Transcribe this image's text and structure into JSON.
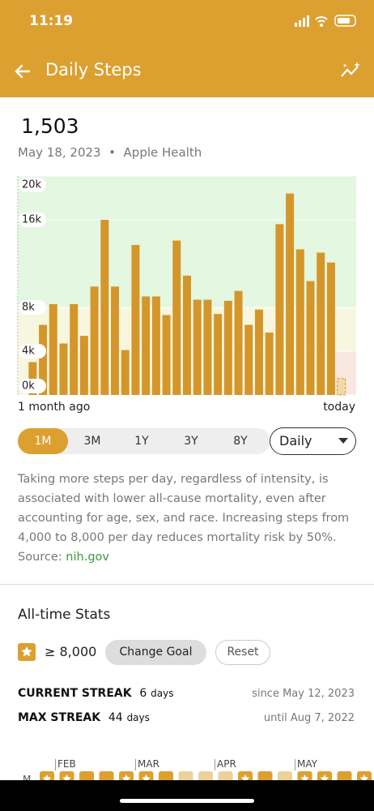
{
  "status_bar": {
    "time": "11:19"
  },
  "header": {
    "title": "Daily Steps"
  },
  "summary": {
    "value": "1,503",
    "date": "May 18, 2023",
    "separator": "•",
    "source": "Apple Health"
  },
  "chart_data": {
    "type": "bar",
    "categories": [
      null,
      null,
      null,
      null,
      null,
      null,
      null,
      null,
      null,
      null,
      null,
      null,
      null,
      null,
      null,
      null,
      null,
      null,
      null,
      null,
      null,
      null,
      null,
      null,
      null,
      null,
      null,
      null,
      null,
      null,
      null
    ],
    "values": [
      3000,
      6400,
      8300,
      4700,
      8300,
      5400,
      9900,
      16000,
      9900,
      4100,
      13700,
      9000,
      9000,
      7300,
      14100,
      10900,
      8700,
      8700,
      7400,
      8600,
      9500,
      6400,
      7800,
      5700,
      15600,
      18400,
      13300,
      10400,
      13000,
      12100,
      1503
    ],
    "color": "#d4962a",
    "ylim": [
      0,
      20000
    ],
    "yticks": [
      {
        "value": 0,
        "label": "0k"
      },
      {
        "value": 4000,
        "label": "4k"
      },
      {
        "value": 8000,
        "label": "8k"
      },
      {
        "value": 16000,
        "label": "16k"
      },
      {
        "value": 20000,
        "label": "20k"
      }
    ],
    "grid": true,
    "x_start_label": "1 month ago",
    "x_end_label": "today"
  },
  "range_tabs": {
    "options": [
      "1M",
      "3M",
      "1Y",
      "3Y",
      "8Y"
    ],
    "selected_index": 0,
    "interval": "Daily"
  },
  "info": {
    "text": "Taking more steps per day, regardless of intensity, is associated with lower all-cause mortality, even after accounting for age, sex, and race. Increasing steps from 4,000 to 8,000 per day reduces mortality risk by 50%.",
    "source_label": "Source:",
    "source_link": "nih.gov"
  },
  "stats": {
    "title": "All-time Stats",
    "goal": "≥ 8,000",
    "change_goal": "Change Goal",
    "reset": "Reset",
    "current_streak": {
      "label": "CURRENT STREAK",
      "value": "6",
      "unit": "days",
      "note": "since May 12, 2023"
    },
    "max_streak": {
      "label": "MAX STREAK",
      "value": "44",
      "unit": "days",
      "note": "until Aug 7, 2022"
    }
  },
  "calendar": {
    "day_label": "M",
    "months": [
      "FEB",
      "MAR",
      "APR",
      "MAY"
    ]
  }
}
